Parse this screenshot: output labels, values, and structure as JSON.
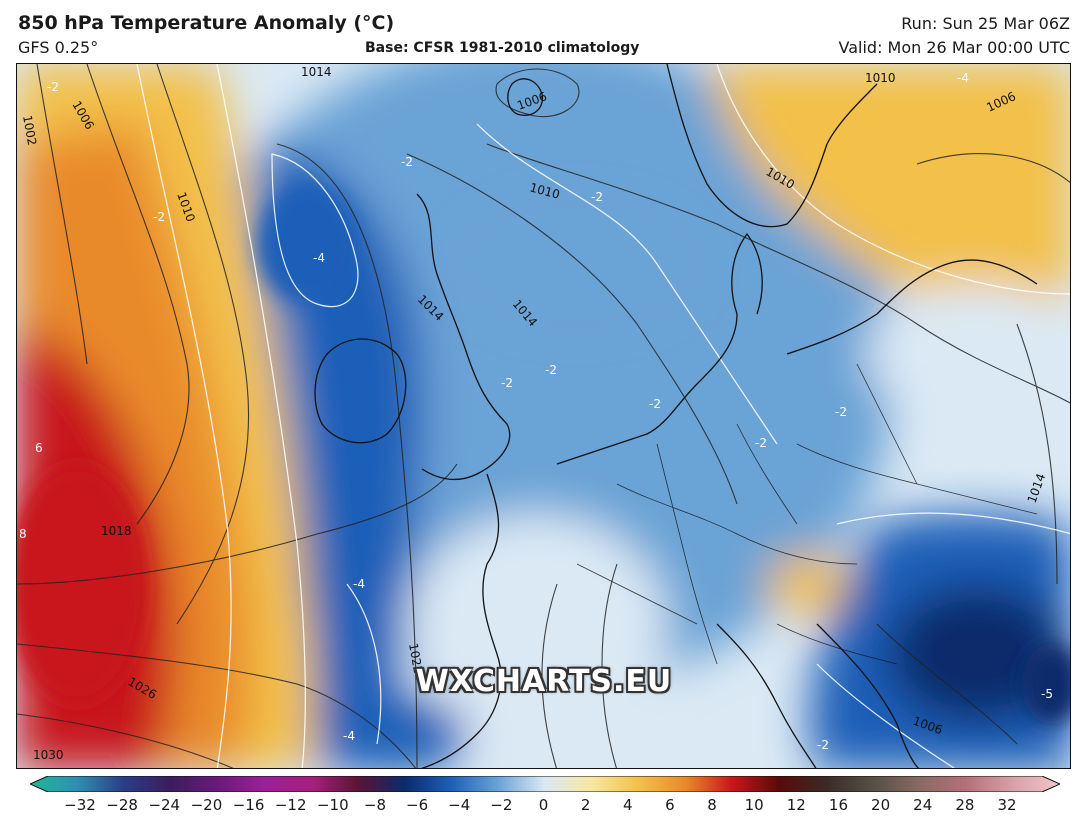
{
  "header": {
    "title": "850 hPa Temperature Anomaly (°C)",
    "model": "GFS 0.25°",
    "base": "Base: CFSR 1981-2010 climatology",
    "run": "Run: Sun 25 Mar 06Z",
    "valid": "Valid: Mon 26 Mar 00:00 UTC"
  },
  "watermark": "WXCHARTS.EU",
  "colorbar": {
    "ticks": [
      "−32",
      "−28",
      "−24",
      "−20",
      "−16",
      "−12",
      "−10",
      "−8",
      "−6",
      "−4",
      "−2",
      "0",
      "2",
      "4",
      "6",
      "8",
      "10",
      "12",
      "16",
      "20",
      "24",
      "28",
      "32"
    ],
    "colors": [
      "#1fb89a",
      "#2f8fb0",
      "#2a3e86",
      "#3a1d5e",
      "#6a1a7a",
      "#9a1f98",
      "#a8207e",
      "#5b1436",
      "#0b2a6b",
      "#1e5fb8",
      "#6aa3d6",
      "#dbe9f4",
      "#f7e7a0",
      "#f3c04a",
      "#e98a2a",
      "#c8161a",
      "#5a0a0a",
      "#3a2a26",
      "#555046",
      "#8a6a62",
      "#b5707a",
      "#d8a0a8",
      "#f2c6cc"
    ],
    "anomaly_colors": {
      "very_cold": "#0b2a6b",
      "cold": "#1e5fb8",
      "cool": "#6aa3d6",
      "neutral": "#dbe9f4",
      "warm": "#f3c04a",
      "hot": "#e98a2a",
      "very_hot": "#c8161a"
    }
  },
  "map": {
    "isobar_labels": [
      "1014",
      "1006",
      "1002",
      "1006",
      "1010",
      "1010",
      "1014",
      "1018",
      "1022",
      "1026",
      "1030",
      "1010",
      "1006",
      "1014",
      "1014",
      "1006",
      "1010"
    ],
    "anomaly_labels": [
      "-2",
      "-2",
      "-2",
      "-4",
      "-2",
      "-2",
      "-2",
      "-2",
      "-2",
      "-4",
      "-4",
      "6",
      "8",
      "-5",
      "-4",
      "-2",
      "-2"
    ]
  }
}
